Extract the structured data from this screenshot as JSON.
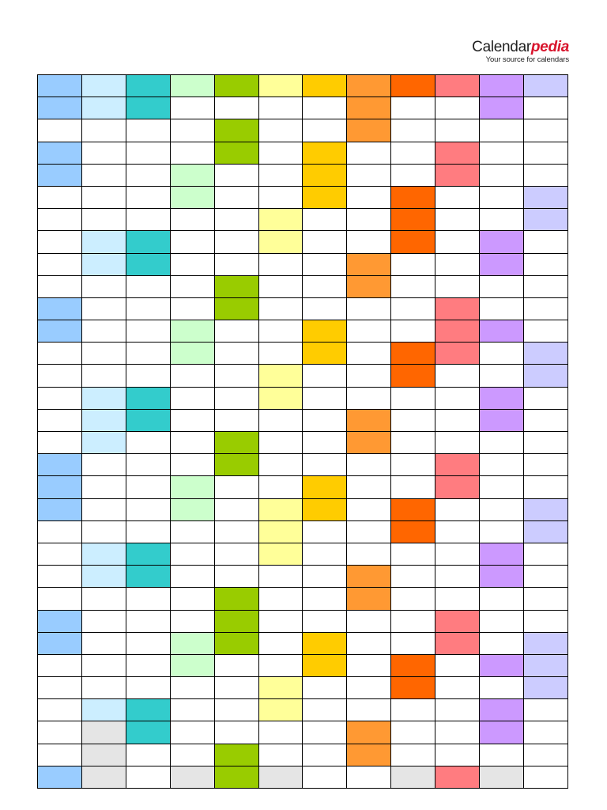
{
  "header": {
    "brand_main": "Calendar",
    "brand_accent": "pedia",
    "tagline": "Your source for calendars"
  },
  "grid": {
    "palette": {
      "W": "#ffffff",
      "X": "#e5e5e5",
      "A": "#99ccff",
      "B": "#cceeff",
      "C": "#33cccc",
      "D": "#ccffcc",
      "E": "#99cc00",
      "F": "#ffff99",
      "G": "#ffcc00",
      "H": "#ff9933",
      "I": "#ff6600",
      "J": "#ff7c80",
      "K": "#cc99ff",
      "L": "#ccccff"
    },
    "rows": [
      "ABCDEFGHIJKL",
      "ABCWWWWHWWKW",
      "WWWWEWWHWWWW",
      "AWWWEWGWWJWW",
      "AWWDWWGWWJWW",
      "WWWDWWGWIWWL",
      "WWWWWFWWIWWL",
      "WBCWWFWWIWKW",
      "WBCWWWWHWWKW",
      "WWWWEWWHWWWW",
      "AWWWEWWWWJWW",
      "AWWDWWGWWJKW",
      "WWWDWWGWIJWL",
      "WWWWWFWWIWWL",
      "WBCWWFWWWWKW",
      "WBCWWWWHWWKW",
      "WBWWEWWHWWWW",
      "AWWWEWWWWJWW",
      "AWWDWWGWWJWW",
      "AWWDWFGWIWWL",
      "WWWWWFWWIWWL",
      "WBCWWFWWWWKW",
      "WBCWWWWHWWKW",
      "WWWWEWWHWWWW",
      "AWWWEWWWWJWW",
      "AWWDEWGWWJWL",
      "WWWDWWGWIWKL",
      "WWWWWFWWIWWL",
      "WBCWWFWWWWKW",
      "WXCWWWWHWWKW",
      "WXWWEWWHWWWW",
      "AXWXEXWWXJXW"
    ]
  }
}
